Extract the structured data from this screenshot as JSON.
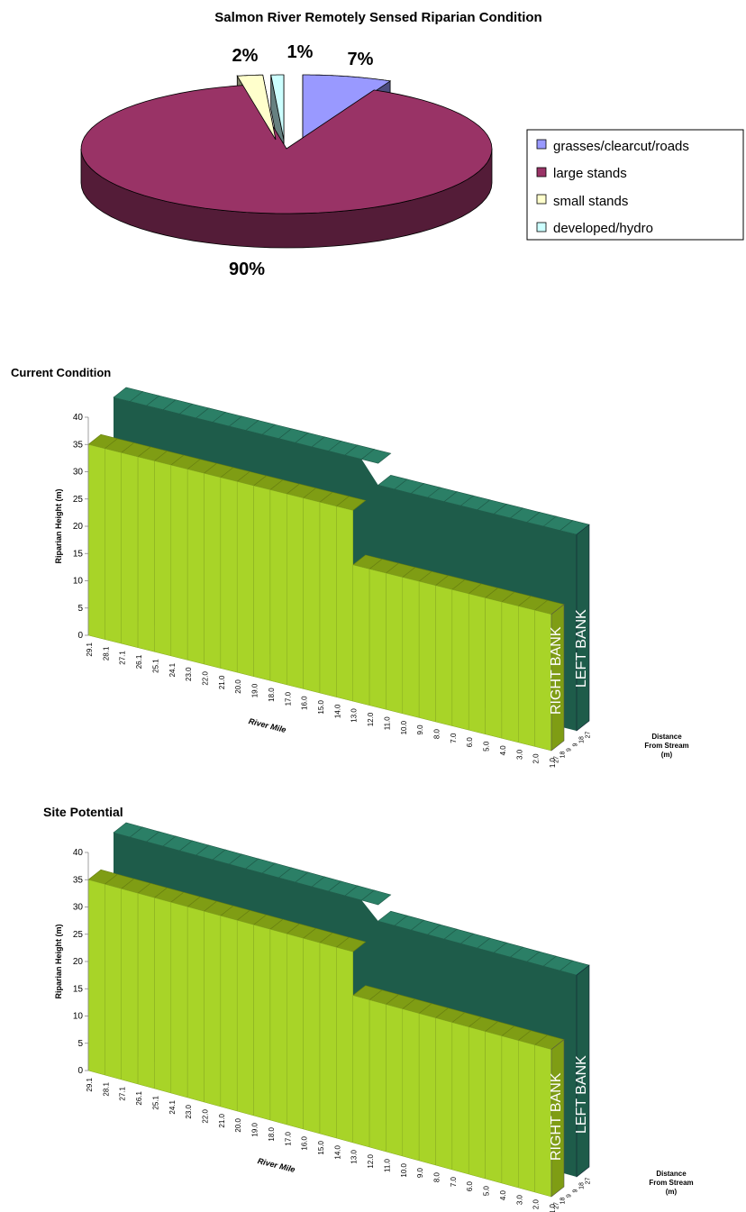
{
  "colors": {
    "grasses": "#9999ff",
    "large_stands": "#993366",
    "small_stands": "#ffffcc",
    "developed": "#ccffff",
    "right_bank": "#a8d428",
    "right_bank_dark": "#7f9d14",
    "left_bank": "#2b7f66",
    "left_bank_dark": "#1e5c4a"
  },
  "chart_data": [
    {
      "type": "pie",
      "title": "Salmon River Remotely Sensed Riparian Condition",
      "legend_position": "right",
      "slices": [
        {
          "name": "grasses/clearcut/roads",
          "value": 7,
          "label": "7%",
          "color": "#9999ff"
        },
        {
          "name": "large stands",
          "value": 90,
          "label": "90%",
          "color": "#993366"
        },
        {
          "name": "small stands",
          "value": 2,
          "label": "2%",
          "color": "#ffffcc"
        },
        {
          "name": "developed/hydro",
          "value": 1,
          "label": "1%",
          "color": "#ccffff"
        }
      ]
    },
    {
      "type": "bar",
      "title": "Current Condition",
      "xlabel": "River Mile",
      "ylabel": "Riparian Height (m)",
      "zlabel": "Distance From Stream (m)",
      "ylim": [
        0,
        40
      ],
      "yticks": [
        "0",
        "5",
        "10",
        "15",
        "20",
        "25",
        "30",
        "35",
        "40"
      ],
      "categories": [
        "29.1",
        "28.1",
        "27.1",
        "26.1",
        "25.1",
        "24.1",
        "23.0",
        "22.0",
        "21.0",
        "20.0",
        "19.0",
        "18.0",
        "17.0",
        "16.0",
        "15.0",
        "14.0",
        "13.0",
        "12.0",
        "11.0",
        "10.0",
        "9.0",
        "8.0",
        "7.0",
        "6.0",
        "5.0",
        "4.0",
        "3.0",
        "2.0",
        "1.0"
      ],
      "depth_ticks": [
        "27",
        "18",
        "9",
        "9",
        "18",
        "27"
      ],
      "series": [
        {
          "name": "RIGHT BANK",
          "values": [
            35,
            35,
            35,
            35,
            35,
            35,
            35,
            35,
            35,
            35,
            35,
            35,
            35,
            35,
            35,
            35,
            25,
            25,
            25,
            25,
            25,
            25,
            25,
            25,
            25,
            25,
            25,
            25,
            25
          ]
        },
        {
          "name": "LEFT BANK",
          "values": [
            40,
            40,
            40,
            40,
            40,
            40,
            40,
            40,
            40,
            40,
            40,
            40,
            40,
            40,
            40,
            40,
            36,
            36,
            36,
            36,
            36,
            36,
            36,
            36,
            36,
            36,
            36,
            36,
            36
          ]
        }
      ]
    },
    {
      "type": "bar",
      "title": "Site Potential",
      "xlabel": "River Mile",
      "ylabel": "Riparian Height (m)",
      "zlabel": "Distance From Stream (m)",
      "ylim": [
        0,
        40
      ],
      "yticks": [
        "0",
        "5",
        "10",
        "15",
        "20",
        "25",
        "30",
        "35",
        "40"
      ],
      "categories": [
        "29.1",
        "28.1",
        "27.1",
        "26.1",
        "25.1",
        "24.1",
        "23.0",
        "22.0",
        "21.0",
        "20.0",
        "19.0",
        "18.0",
        "17.0",
        "16.0",
        "15.0",
        "14.0",
        "13.0",
        "12.0",
        "11.0",
        "10.0",
        "9.0",
        "8.0",
        "7.0",
        "6.0",
        "5.0",
        "4.0",
        "3.0",
        "2.0",
        "1.0"
      ],
      "depth_ticks": [
        "27",
        "18",
        "9",
        "9",
        "18",
        "27"
      ],
      "series": [
        {
          "name": "RIGHT BANK",
          "values": [
            35,
            35,
            35,
            35,
            35,
            35,
            35,
            35,
            35,
            35,
            35,
            35,
            35,
            35,
            35,
            35,
            27,
            27,
            27,
            27,
            27,
            27,
            27,
            27,
            27,
            27,
            27,
            27,
            27
          ]
        },
        {
          "name": "LEFT BANK",
          "values": [
            40,
            40,
            40,
            40,
            40,
            40,
            40,
            40,
            40,
            40,
            40,
            40,
            40,
            40,
            40,
            40,
            37,
            37,
            37,
            37,
            37,
            37,
            37,
            37,
            37,
            37,
            37,
            37,
            37
          ]
        }
      ]
    }
  ]
}
